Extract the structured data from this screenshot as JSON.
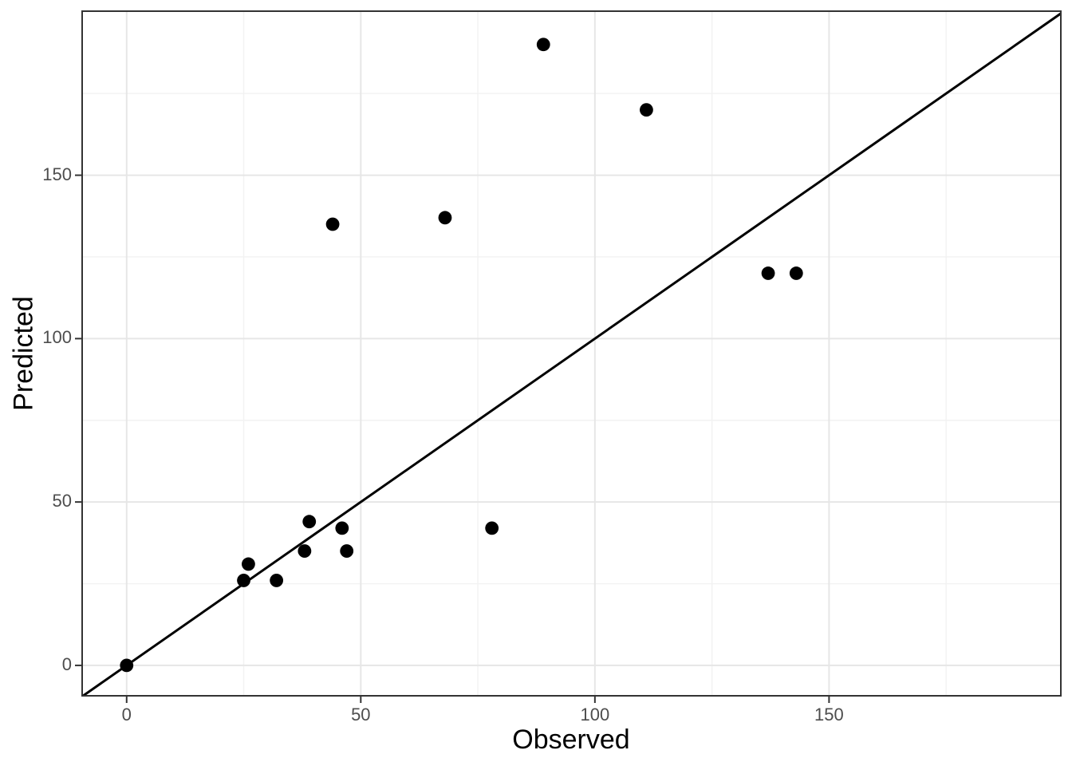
{
  "chart_data": {
    "type": "scatter",
    "title": "",
    "xlabel": "Observed",
    "ylabel": "Predicted",
    "points": [
      [
        0,
        0
      ],
      [
        25,
        26
      ],
      [
        26,
        31
      ],
      [
        32,
        26
      ],
      [
        38,
        35
      ],
      [
        39,
        44
      ],
      [
        44,
        135
      ],
      [
        46,
        42
      ],
      [
        47,
        35
      ],
      [
        68,
        137
      ],
      [
        78,
        42
      ],
      [
        89,
        190
      ],
      [
        111,
        170
      ],
      [
        137,
        120
      ],
      [
        143,
        120
      ]
    ],
    "identity_line": {
      "slope": 1,
      "intercept": 0
    },
    "x_ticks": [
      0,
      50,
      100,
      150
    ],
    "y_ticks": [
      0,
      50,
      100,
      150
    ],
    "x_minor_ticks": [
      25,
      75,
      125,
      175
    ],
    "y_minor_ticks": [
      25,
      75,
      125,
      175
    ],
    "xlim": [
      -9.5,
      199.5
    ],
    "ylim": [
      -9.3,
      200.2
    ],
    "grid": true,
    "legend": "none",
    "colors": {
      "point": "#000000",
      "line": "#000000",
      "grid_major": "#e6e6e6",
      "grid_minor": "#f2f2f2",
      "panel_border": "#333333",
      "tick_mark": "#333333",
      "tick_label": "#4d4d4d",
      "axis_title": "#000000",
      "background": "#ffffff"
    }
  }
}
